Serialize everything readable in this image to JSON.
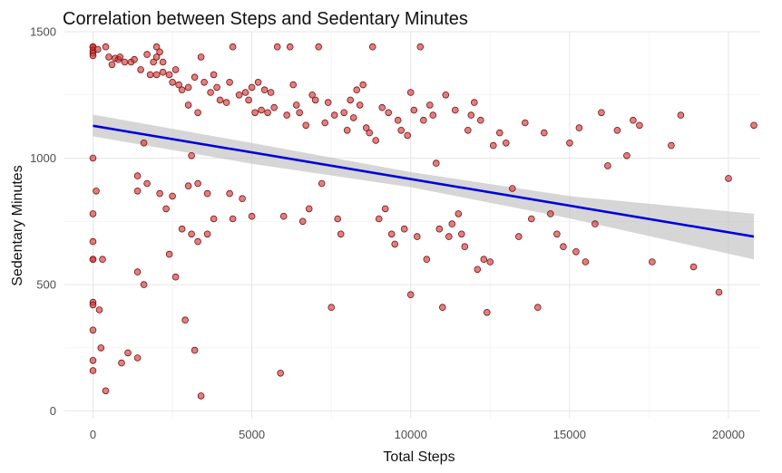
{
  "chart_data": {
    "type": "scatter",
    "title": "Correlation between Steps and Sedentary Minutes",
    "xlabel": "Total Steps",
    "ylabel": "Sedentary Minutes",
    "xlim": [
      -900,
      21000
    ],
    "ylim": [
      -30,
      1500
    ],
    "x_ticks": [
      0,
      5000,
      10000,
      15000,
      20000
    ],
    "y_ticks": [
      0,
      500,
      1000,
      1500
    ],
    "grid": true,
    "legend": "none",
    "colors": {
      "points": "#cd3c3c",
      "point_outline": "#7a1010",
      "trend": "#0000dd",
      "band": "#bdbdbd"
    },
    "trend_line": {
      "method": "linear",
      "x": [
        0,
        20800
      ],
      "y": [
        1128,
        690
      ]
    },
    "confidence_band": {
      "x": [
        0,
        5000,
        10000,
        15000,
        20800
      ],
      "upper": [
        1172,
        1060,
        945,
        850,
        780
      ],
      "lower": [
        1086,
        978,
        885,
        762,
        600
      ]
    },
    "points": [
      [
        0,
        1440
      ],
      [
        0,
        1440
      ],
      [
        0,
        1440
      ],
      [
        0,
        1425
      ],
      [
        0,
        1415
      ],
      [
        0,
        1405
      ],
      [
        0,
        1000
      ],
      [
        0,
        780
      ],
      [
        0,
        670
      ],
      [
        0,
        600
      ],
      [
        0,
        600
      ],
      [
        0,
        430
      ],
      [
        0,
        420
      ],
      [
        0,
        320
      ],
      [
        0,
        200
      ],
      [
        0,
        160
      ],
      [
        100,
        870
      ],
      [
        150,
        1430
      ],
      [
        200,
        400
      ],
      [
        250,
        250
      ],
      [
        300,
        600
      ],
      [
        400,
        1440
      ],
      [
        400,
        80
      ],
      [
        500,
        1400
      ],
      [
        600,
        1370
      ],
      [
        700,
        1395
      ],
      [
        800,
        1390
      ],
      [
        850,
        1400
      ],
      [
        900,
        190
      ],
      [
        1000,
        1380
      ],
      [
        1100,
        230
      ],
      [
        1200,
        1380
      ],
      [
        1300,
        1390
      ],
      [
        1400,
        930
      ],
      [
        1400,
        870
      ],
      [
        1400,
        550
      ],
      [
        1400,
        210
      ],
      [
        1500,
        1350
      ],
      [
        1600,
        1060
      ],
      [
        1600,
        500
      ],
      [
        1700,
        900
      ],
      [
        1700,
        1410
      ],
      [
        1800,
        1330
      ],
      [
        1900,
        1380
      ],
      [
        2000,
        1440
      ],
      [
        2000,
        1400
      ],
      [
        2000,
        1330
      ],
      [
        2100,
        1420
      ],
      [
        2100,
        860
      ],
      [
        2200,
        1380
      ],
      [
        2200,
        1340
      ],
      [
        2300,
        800
      ],
      [
        2400,
        1330
      ],
      [
        2400,
        620
      ],
      [
        2500,
        1300
      ],
      [
        2500,
        850
      ],
      [
        2600,
        1350
      ],
      [
        2600,
        530
      ],
      [
        2700,
        1290
      ],
      [
        2800,
        1270
      ],
      [
        2800,
        720
      ],
      [
        2900,
        360
      ],
      [
        3000,
        1210
      ],
      [
        3000,
        1280
      ],
      [
        3000,
        890
      ],
      [
        3100,
        1010
      ],
      [
        3100,
        700
      ],
      [
        3200,
        1320
      ],
      [
        3200,
        240
      ],
      [
        3300,
        1180
      ],
      [
        3300,
        900
      ],
      [
        3300,
        670
      ],
      [
        3400,
        1400
      ],
      [
        3400,
        60
      ],
      [
        3500,
        1300
      ],
      [
        3600,
        860
      ],
      [
        3600,
        700
      ],
      [
        3700,
        1260
      ],
      [
        3800,
        1330
      ],
      [
        3800,
        760
      ],
      [
        3900,
        1280
      ],
      [
        4000,
        1230
      ],
      [
        4200,
        1220
      ],
      [
        4300,
        1300
      ],
      [
        4300,
        860
      ],
      [
        4400,
        1440
      ],
      [
        4400,
        760
      ],
      [
        4600,
        1250
      ],
      [
        4700,
        840
      ],
      [
        4800,
        1260
      ],
      [
        4900,
        1230
      ],
      [
        5000,
        1280
      ],
      [
        5000,
        770
      ],
      [
        5100,
        1180
      ],
      [
        5200,
        1300
      ],
      [
        5300,
        1190
      ],
      [
        5400,
        1270
      ],
      [
        5500,
        1180
      ],
      [
        5600,
        1260
      ],
      [
        5700,
        1200
      ],
      [
        5800,
        1440
      ],
      [
        5900,
        150
      ],
      [
        6000,
        770
      ],
      [
        6100,
        1170
      ],
      [
        6200,
        1440
      ],
      [
        6300,
        1290
      ],
      [
        6400,
        1210
      ],
      [
        6500,
        1180
      ],
      [
        6600,
        750
      ],
      [
        6700,
        1130
      ],
      [
        6800,
        800
      ],
      [
        6900,
        1250
      ],
      [
        7000,
        1230
      ],
      [
        7100,
        1440
      ],
      [
        7200,
        900
      ],
      [
        7300,
        1140
      ],
      [
        7400,
        1220
      ],
      [
        7500,
        410
      ],
      [
        7600,
        1170
      ],
      [
        7700,
        760
      ],
      [
        7800,
        700
      ],
      [
        7900,
        1180
      ],
      [
        8000,
        1110
      ],
      [
        8100,
        1230
      ],
      [
        8200,
        1160
      ],
      [
        8300,
        1270
      ],
      [
        8400,
        1210
      ],
      [
        8500,
        1290
      ],
      [
        8600,
        1120
      ],
      [
        8700,
        1100
      ],
      [
        8800,
        1440
      ],
      [
        8900,
        1070
      ],
      [
        9000,
        760
      ],
      [
        9100,
        1200
      ],
      [
        9200,
        800
      ],
      [
        9300,
        1180
      ],
      [
        9400,
        700
      ],
      [
        9500,
        660
      ],
      [
        9600,
        1150
      ],
      [
        9700,
        1110
      ],
      [
        9800,
        720
      ],
      [
        9900,
        1090
      ],
      [
        10000,
        1260
      ],
      [
        10000,
        460
      ],
      [
        10100,
        1190
      ],
      [
        10200,
        690
      ],
      [
        10300,
        1440
      ],
      [
        10400,
        1150
      ],
      [
        10500,
        600
      ],
      [
        10600,
        1210
      ],
      [
        10700,
        1170
      ],
      [
        10800,
        980
      ],
      [
        10900,
        720
      ],
      [
        11000,
        410
      ],
      [
        11100,
        1250
      ],
      [
        11200,
        690
      ],
      [
        11300,
        740
      ],
      [
        11400,
        1190
      ],
      [
        11500,
        780
      ],
      [
        11600,
        700
      ],
      [
        11700,
        650
      ],
      [
        11800,
        1110
      ],
      [
        11900,
        1170
      ],
      [
        12000,
        1220
      ],
      [
        12100,
        560
      ],
      [
        12200,
        1150
      ],
      [
        12300,
        600
      ],
      [
        12400,
        390
      ],
      [
        12500,
        590
      ],
      [
        12600,
        1050
      ],
      [
        12800,
        1100
      ],
      [
        13000,
        1060
      ],
      [
        13200,
        880
      ],
      [
        13400,
        690
      ],
      [
        13600,
        1140
      ],
      [
        13800,
        760
      ],
      [
        14000,
        410
      ],
      [
        14200,
        1100
      ],
      [
        14400,
        780
      ],
      [
        14600,
        700
      ],
      [
        14800,
        650
      ],
      [
        15000,
        1060
      ],
      [
        15200,
        630
      ],
      [
        15300,
        1120
      ],
      [
        15500,
        590
      ],
      [
        15800,
        740
      ],
      [
        16000,
        1180
      ],
      [
        16200,
        970
      ],
      [
        16500,
        1110
      ],
      [
        16800,
        1010
      ],
      [
        17000,
        1150
      ],
      [
        17200,
        1130
      ],
      [
        17600,
        590
      ],
      [
        18200,
        1050
      ],
      [
        18500,
        1170
      ],
      [
        18900,
        570
      ],
      [
        19700,
        470
      ],
      [
        20000,
        920
      ],
      [
        20800,
        1130
      ]
    ]
  }
}
